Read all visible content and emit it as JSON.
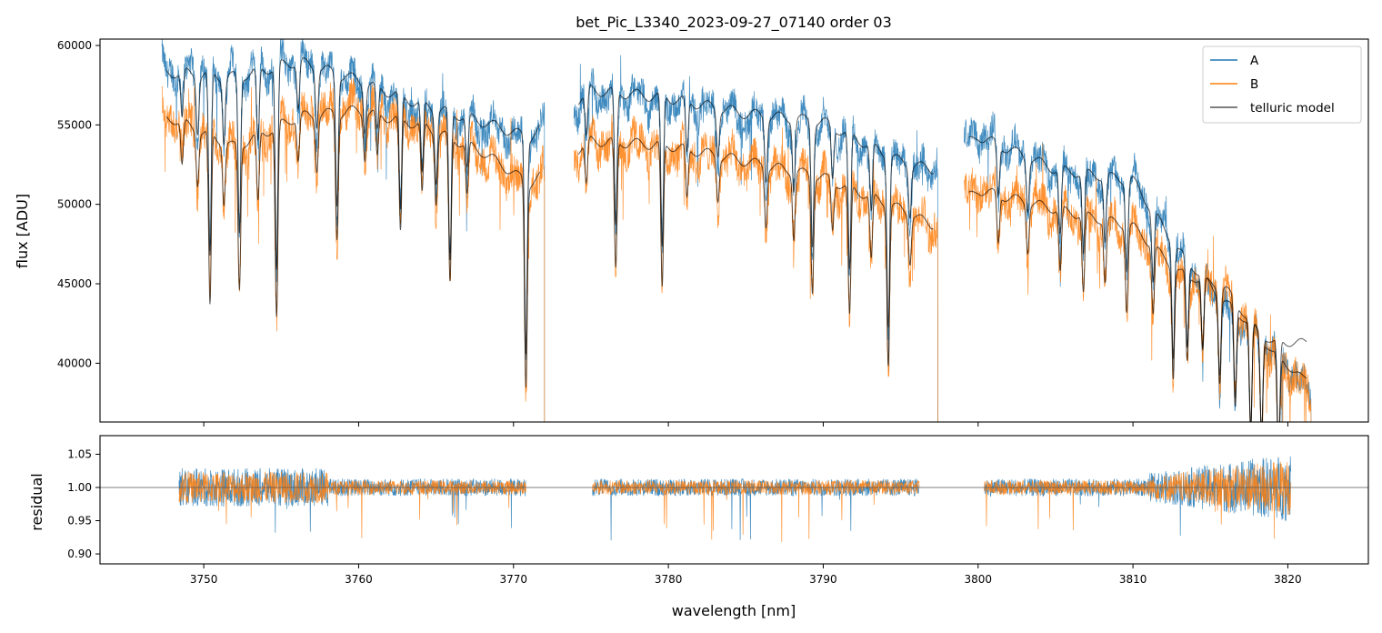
{
  "chart_data": [
    {
      "type": "line",
      "title": "bet_Pic_L3340_2023-09-27_07140  order 03",
      "xlabel": "",
      "ylabel": "flux [ADU]",
      "xlim": [
        3743.3,
        3825.2
      ],
      "ylim": [
        36300,
        60400
      ],
      "yticks": [
        40000,
        45000,
        50000,
        55000,
        60000
      ],
      "ytick_labels": [
        "40000",
        "45000",
        "50000",
        "55000",
        "60000"
      ],
      "xticks": [
        3750,
        3760,
        3770,
        3780,
        3790,
        3800,
        3810,
        3820
      ],
      "grid": false,
      "legend": {
        "placement": "top-right",
        "entries": [
          "A",
          "B",
          "telluric model"
        ]
      },
      "segments": [
        [
          3747.3,
          3772.0
        ],
        [
          3773.9,
          3797.4
        ],
        [
          3799.1,
          3821.5
        ]
      ],
      "series": [
        {
          "name": "A",
          "color": "#1f77b4",
          "x": [
            3748,
            3752,
            3756,
            3760,
            3764,
            3768,
            3771,
            3775,
            3780,
            3785,
            3790,
            3795,
            3797,
            3800,
            3805,
            3810,
            3813,
            3816,
            3819,
            3821
          ],
          "values": [
            58500,
            58200,
            59000,
            57500,
            56000,
            55000,
            54000,
            57000,
            56500,
            55500,
            55000,
            52500,
            52000,
            54500,
            52000,
            51500,
            47000,
            43500,
            41000,
            38500
          ]
        },
        {
          "name": "B",
          "color": "#ff7f0e",
          "x": [
            3748,
            3752,
            3756,
            3760,
            3764,
            3768,
            3771,
            3775,
            3780,
            3785,
            3790,
            3795,
            3797,
            3800,
            3805,
            3810,
            3813,
            3816,
            3819,
            3821
          ],
          "values": [
            55500,
            53500,
            55500,
            56000,
            55000,
            53000,
            51000,
            54000,
            53500,
            52500,
            51500,
            49500,
            48500,
            51000,
            49500,
            48500,
            45500,
            44500,
            40500,
            38500
          ]
        },
        {
          "name": "telluric model",
          "color": "#000000",
          "x": [
            3748,
            3752,
            3756,
            3760,
            3764,
            3768,
            3771,
            3775,
            3780,
            3785,
            3790,
            3795,
            3797,
            3800,
            3805,
            3810,
            3813,
            3816,
            3819,
            3821
          ],
          "values": [
            58300,
            58000,
            59000,
            57800,
            56300,
            55200,
            54200,
            57200,
            56700,
            55700,
            55200,
            52700,
            52200,
            54300,
            52200,
            51500,
            47000,
            43800,
            41300,
            41300
          ],
          "values_b": [
            55400,
            53600,
            55500,
            55900,
            55000,
            53300,
            51300,
            54000,
            53700,
            52700,
            51700,
            49700,
            48700,
            50900,
            49700,
            48600,
            45700,
            44700,
            40700,
            39000
          ]
        }
      ]
    },
    {
      "type": "line",
      "xlabel": "wavelength [nm]",
      "ylabel": "residual",
      "xlim": [
        3743.3,
        3825.2
      ],
      "ylim": [
        0.885,
        1.078
      ],
      "yticks": [
        0.9,
        0.95,
        1.0,
        1.05
      ],
      "ytick_labels": [
        "0.90",
        "0.95",
        "1.00",
        "1.05"
      ],
      "xticks": [
        3750,
        3760,
        3770,
        3780,
        3790,
        3800,
        3810,
        3820
      ],
      "xtick_labels": [
        "3750",
        "3760",
        "3770",
        "3780",
        "3790",
        "3800",
        "3810",
        "3820"
      ],
      "reference_line": 1.0,
      "segments": [
        [
          3748.4,
          3770.8
        ],
        [
          3775.1,
          3796.2
        ],
        [
          3800.4,
          3820.2
        ]
      ],
      "series": [
        {
          "name": "A",
          "color": "#1f77b4",
          "noise": 0.022
        },
        {
          "name": "B",
          "color": "#ff7f0e",
          "noise": 0.018
        }
      ]
    }
  ]
}
